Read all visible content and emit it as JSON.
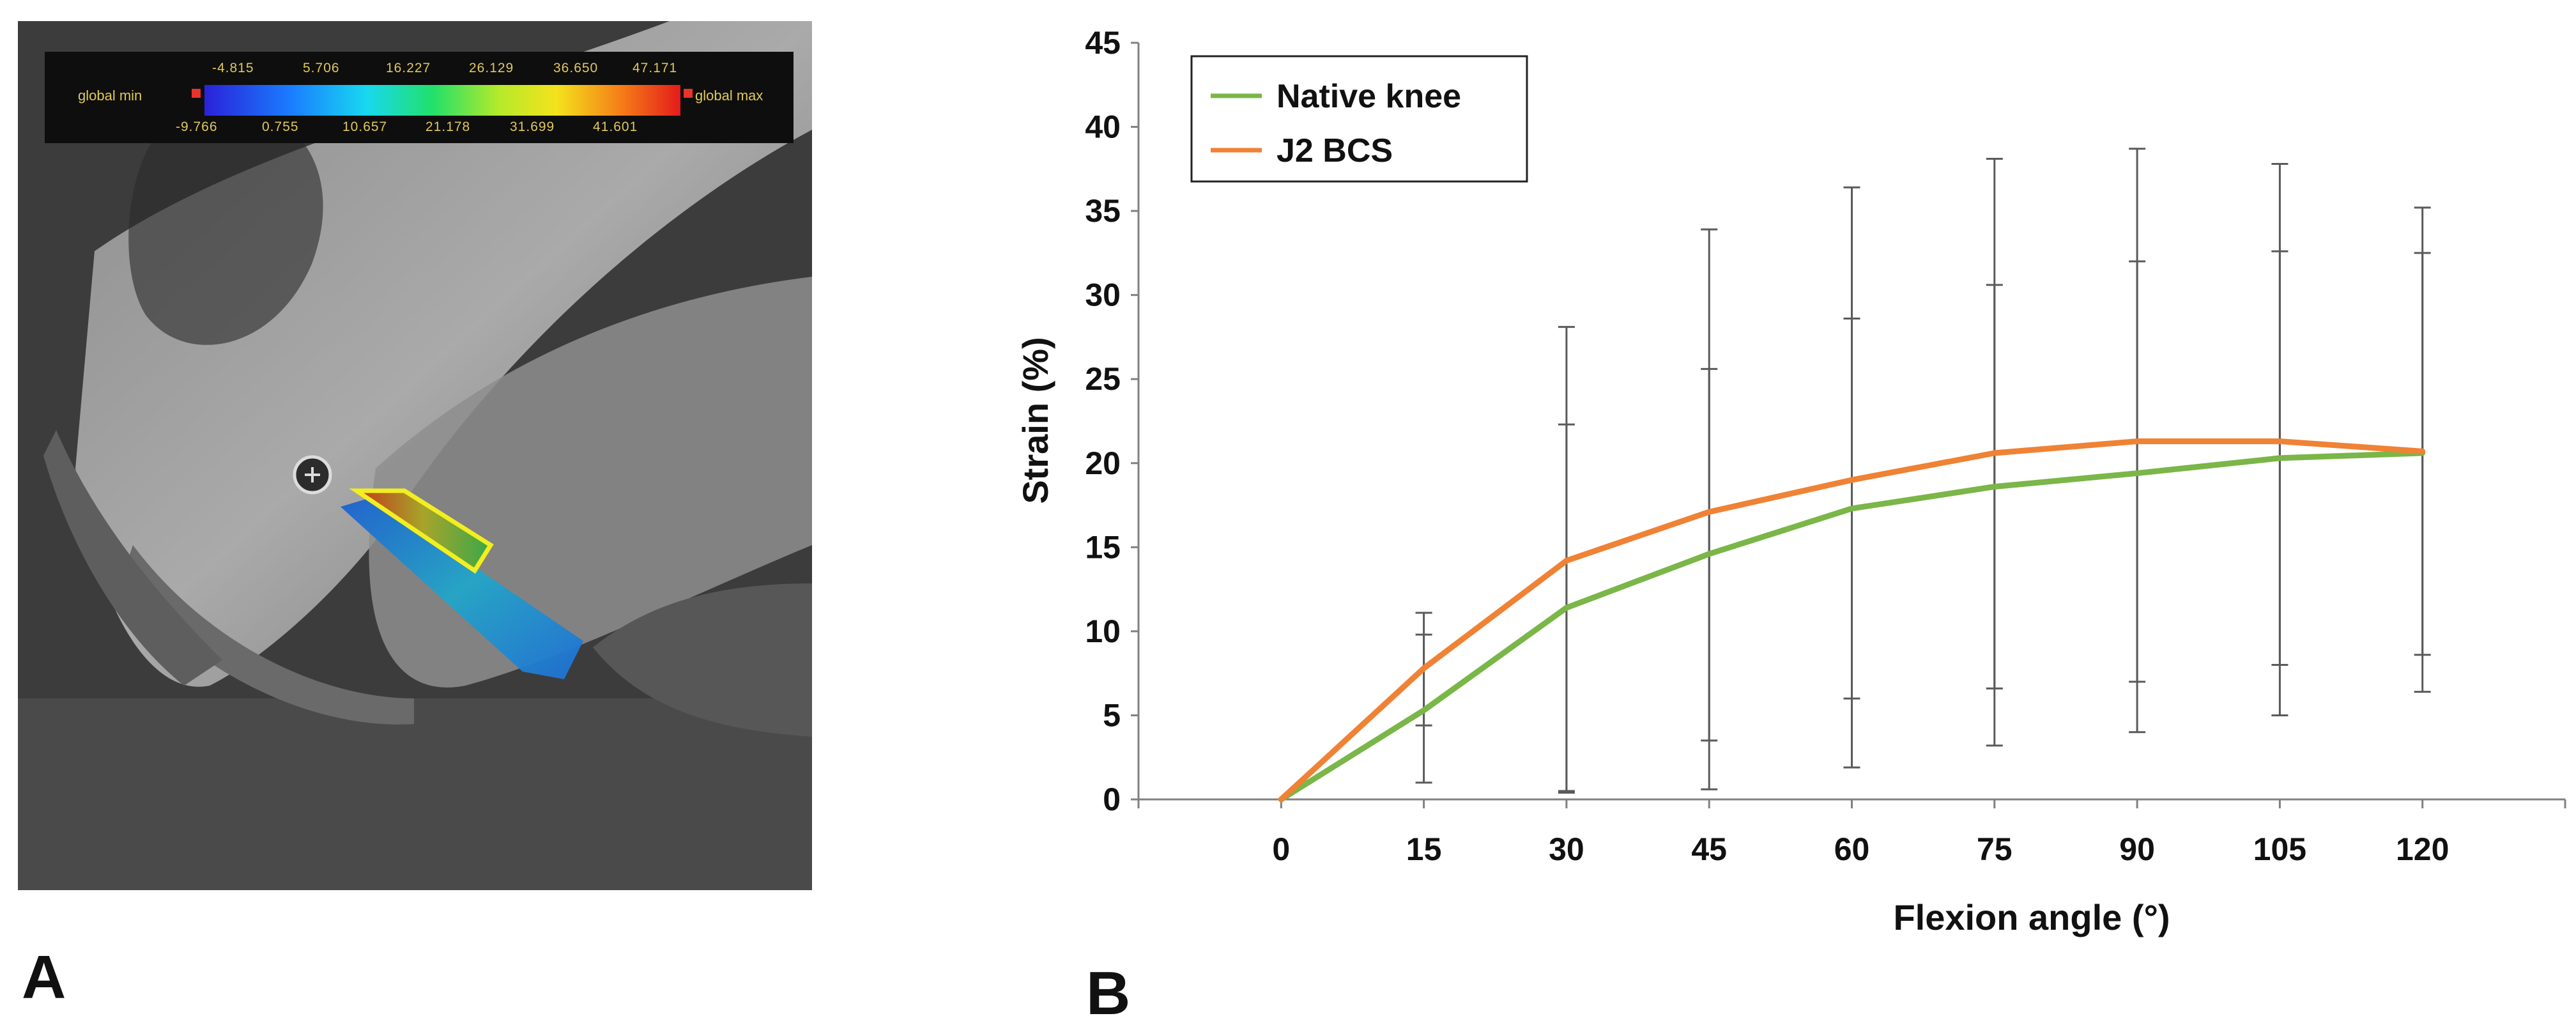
{
  "panel_a": {
    "label": "A",
    "colorbar": {
      "min_label": "global min",
      "max_label": "global max",
      "top_values": [
        "-4.815",
        "5.706",
        "16.227",
        "26.129",
        "36.650",
        "47.171"
      ],
      "bottom_values": [
        "-9.766",
        "0.755",
        "10.657",
        "21.178",
        "31.699",
        "41.601"
      ]
    }
  },
  "panel_b": {
    "label": "B"
  },
  "chart_data": {
    "type": "line",
    "title": "",
    "xlabel": "Flexion angle (°)",
    "ylabel": "Strain (%)",
    "x": [
      0,
      15,
      30,
      45,
      60,
      75,
      90,
      105,
      120
    ],
    "x_tick_labels": [
      "0",
      "15",
      "30",
      "45",
      "60",
      "75",
      "90",
      "105",
      "120"
    ],
    "y_tick_labels": [
      "0",
      "5",
      "10",
      "15",
      "20",
      "25",
      "30",
      "35",
      "40",
      "45"
    ],
    "ylim": [
      0,
      45
    ],
    "xlim": [
      -15,
      135
    ],
    "grid": false,
    "legend_position": "top-left",
    "series": [
      {
        "name": "Native knee",
        "color": "#7ab648",
        "values": [
          0,
          5.3,
          11.4,
          14.6,
          17.3,
          18.6,
          19.4,
          20.3,
          20.6
        ],
        "error_low": [
          0,
          1.0,
          0.5,
          3.5,
          6.0,
          6.6,
          7.0,
          8.0,
          8.6
        ],
        "error_high": [
          0,
          9.8,
          22.3,
          25.6,
          28.6,
          30.6,
          32.0,
          32.6,
          32.5
        ]
      },
      {
        "name": "J2 BCS",
        "color": "#ef8234",
        "values": [
          0,
          7.8,
          14.2,
          17.1,
          19.0,
          20.6,
          21.3,
          21.3,
          20.7
        ],
        "error_low": [
          0,
          4.4,
          0.4,
          0.6,
          1.9,
          3.2,
          4.0,
          5.0,
          6.4
        ],
        "error_high": [
          0,
          11.1,
          28.1,
          33.9,
          36.4,
          38.1,
          38.7,
          37.8,
          35.2
        ]
      }
    ]
  }
}
